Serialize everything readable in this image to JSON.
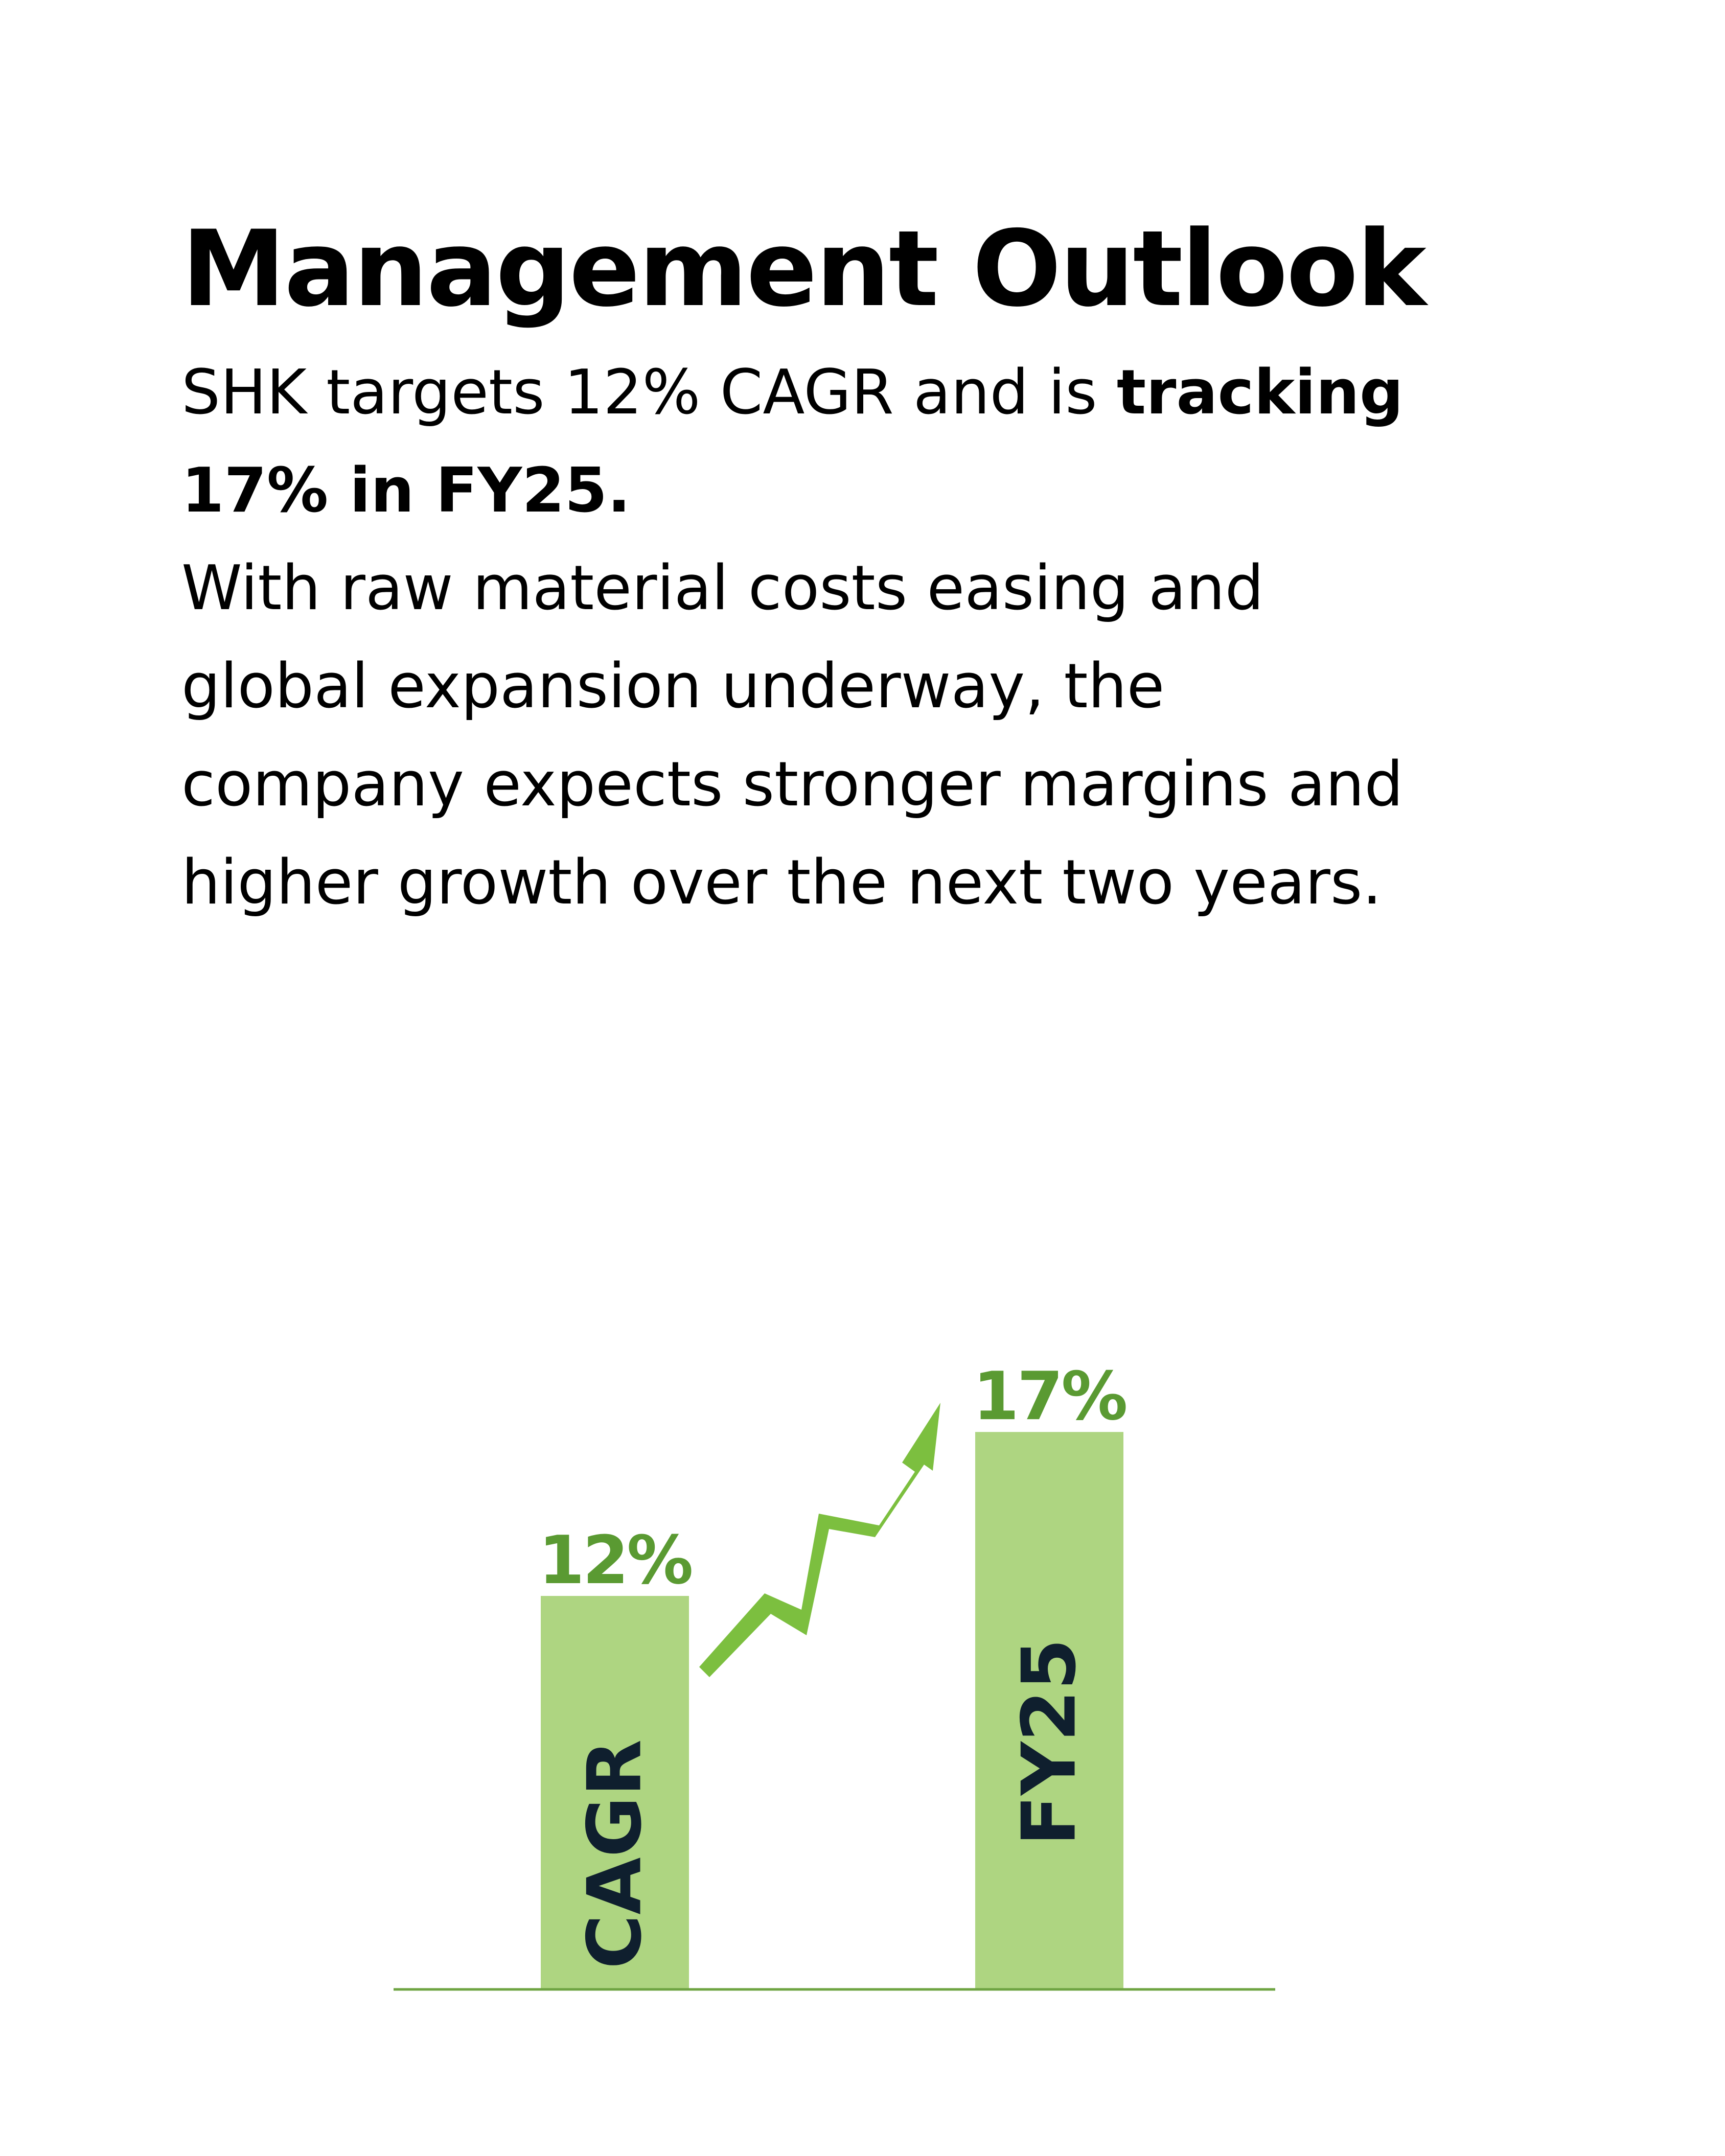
{
  "heading": {
    "title": "Management Outlook"
  },
  "lead": {
    "prefix": "SHK targets 12% CAGR and is ",
    "emphasis": "tracking 17% in FY25."
  },
  "body": {
    "paragraph": "With raw material costs easing and global expansion underway, the company expects stronger margins and higher growth over the next two years."
  },
  "chart_data": {
    "type": "bar",
    "categories": [
      "CAGR",
      "FY25"
    ],
    "values": [
      12,
      17
    ],
    "value_labels": [
      "12%",
      "17%"
    ],
    "ylim": [
      0,
      18
    ],
    "annotation": "upward zigzag growth arrow between bars",
    "colors": {
      "bar": "#aed581",
      "value_label": "#5a9a32",
      "category_label": "#0f1f2e",
      "axis": "#6ea442",
      "arrow": "#7cbf3f"
    }
  }
}
